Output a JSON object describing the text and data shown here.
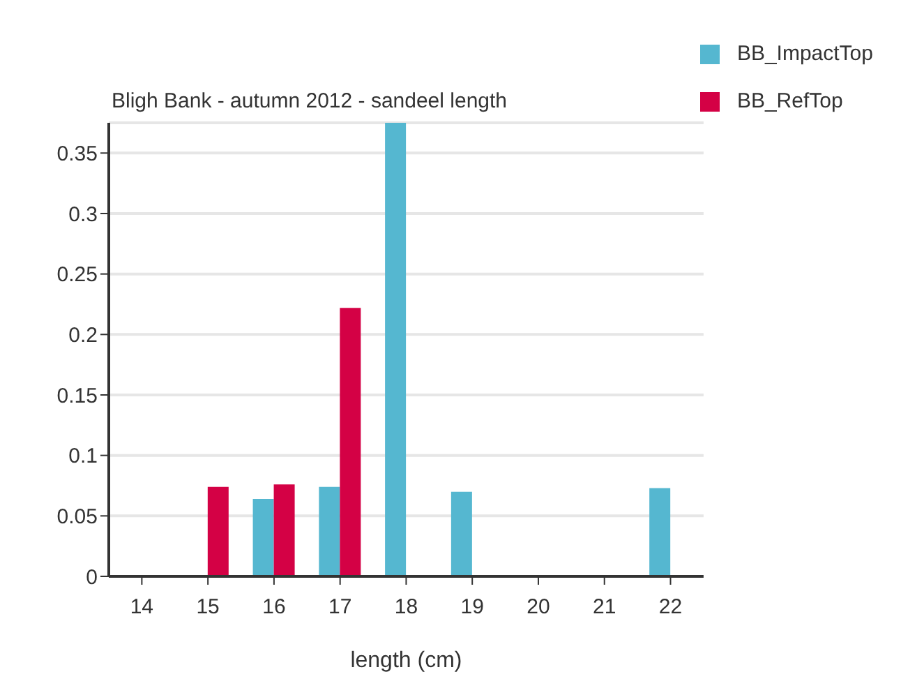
{
  "chart_data": {
    "type": "bar",
    "title": "Bligh Bank - autumn 2012 - sandeel length",
    "xlabel": "length (cm)",
    "categories": [
      "14",
      "15",
      "16",
      "17",
      "18",
      "19",
      "20",
      "21",
      "22"
    ],
    "series": [
      {
        "name": "BB_ImpactTop",
        "color": "#55b7d0",
        "values": [
          0,
          0,
          0.064,
          0.074,
          0.375,
          0.07,
          0,
          0,
          0.073
        ]
      },
      {
        "name": "BB_RefTop",
        "color": "#d40145",
        "values": [
          0,
          0.074,
          0.076,
          0.222,
          0,
          0,
          0,
          0,
          0
        ]
      }
    ],
    "ylim": [
      0,
      0.375
    ],
    "yticks": [
      0,
      0.05,
      0.1,
      0.15,
      0.2,
      0.25,
      0.3,
      0.35
    ],
    "grid": "y",
    "legend": "top right"
  }
}
